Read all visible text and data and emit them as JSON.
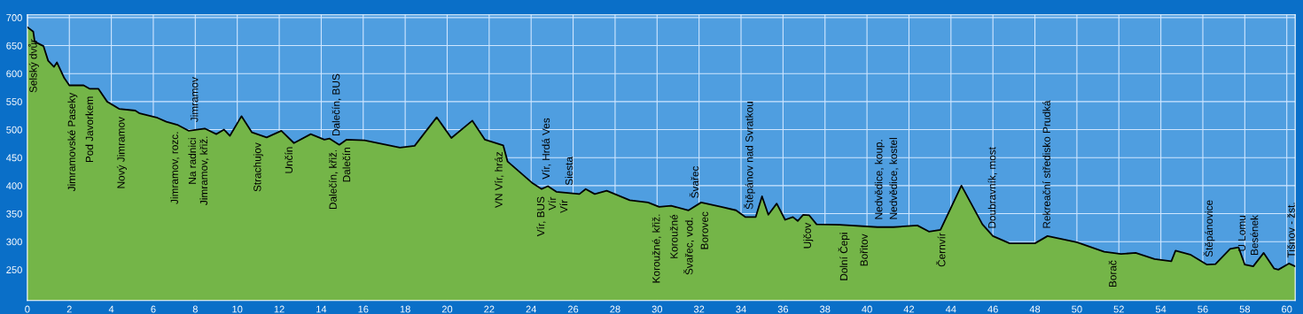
{
  "chart_data": {
    "type": "area",
    "x": [
      0,
      0.28,
      0.35,
      0.77,
      0.99,
      1.27,
      1.41,
      1.76,
      2.0,
      2.68,
      2.96,
      3.38,
      3.8,
      4.37,
      5.14,
      5.35,
      6.2,
      6.62,
      7.18,
      7.68,
      8.45,
      9.0,
      9.37,
      9.65,
      10.2,
      10.7,
      11.4,
      12.1,
      12.7,
      13.5,
      14.15,
      14.4,
      14.86,
      15.2,
      16.06,
      17.75,
      18.45,
      19.5,
      19.86,
      20.2,
      21.2,
      21.8,
      22.67,
      22.88,
      24.08,
      24.5,
      24.8,
      25.2,
      26.3,
      26.6,
      27.03,
      27.6,
      28.7,
      29.57,
      30.1,
      30.67,
      31.5,
      32.1,
      33.06,
      33.76,
      34.2,
      34.7,
      35.0,
      35.3,
      35.7,
      36.1,
      36.47,
      36.7,
      36.96,
      37.25,
      37.6,
      38.7,
      40.5,
      41.26,
      42.4,
      42.95,
      43.5,
      44.5,
      45.5,
      46.0,
      46.8,
      48.0,
      48.6,
      50.0,
      51.3,
      52.1,
      52.8,
      53.7,
      54.5,
      54.7,
      55.4,
      56.2,
      56.6,
      57.3,
      57.7,
      58.0,
      58.4,
      58.9,
      59.4,
      59.6,
      60.1,
      60.4
    ],
    "series": [
      {
        "color": "#74b548",
        "values": [
          683,
          675,
          657,
          649,
          623,
          612,
          620,
          592,
          579,
          579,
          573,
          573,
          550,
          537,
          534,
          529,
          521,
          514,
          508,
          498,
          502,
          492,
          500,
          489,
          524,
          495,
          486,
          498,
          476,
          492,
          482,
          484,
          473,
          482,
          481,
          468,
          471,
          522,
          503,
          485,
          516,
          482,
          472,
          443,
          404,
          394,
          399,
          389,
          385,
          394,
          385,
          391,
          374,
          370,
          362,
          364,
          356,
          370,
          362,
          356,
          344,
          344,
          381,
          348,
          368,
          339,
          344,
          337,
          348,
          347,
          331,
          330,
          326,
          326,
          329,
          318,
          321,
          400,
          331,
          310,
          297,
          297,
          310,
          299,
          282,
          278,
          280,
          269,
          265,
          284,
          277,
          259,
          260,
          287,
          290,
          259,
          256,
          280,
          252,
          250,
          261,
          256
        ]
      }
    ],
    "xlim": [
      0,
      60.4
    ],
    "ylim": [
      195,
      705
    ],
    "xticks": [
      0,
      2,
      4,
      6,
      8,
      10,
      12,
      14,
      16,
      18,
      20,
      22,
      24,
      26,
      28,
      30,
      32,
      34,
      36,
      38,
      40,
      42,
      44,
      46,
      48,
      50,
      52,
      54,
      56,
      58,
      60
    ],
    "yticks": [
      250,
      300,
      350,
      400,
      450,
      500,
      550,
      600,
      650,
      700
    ],
    "grid": true,
    "annotations": [
      {
        "text": "Selský dvůr",
        "x": 0.3,
        "y": 675
      },
      {
        "text": "Jimramovské Paseky",
        "x": 2.15,
        "y": 579
      },
      {
        "text": "Pod Javorkem",
        "x": 3.0,
        "y": 573
      },
      {
        "text": "Nový Jimramov",
        "x": 4.5,
        "y": 536
      },
      {
        "text": "Jimramov, rozc.",
        "x": 7.05,
        "y": 510
      },
      {
        "text": "Na radnici",
        "x": 7.9,
        "y": 499
      },
      {
        "text": "Jimramov",
        "x": 8.0,
        "y": 500
      },
      {
        "text": "Jimramov, křiž.",
        "x": 8.45,
        "y": 502
      },
      {
        "text": "Strachujov",
        "x": 11.0,
        "y": 490
      },
      {
        "text": "Unčín",
        "x": 12.5,
        "y": 483
      },
      {
        "text": "Dalečín, křiž.",
        "x": 14.6,
        "y": 478
      },
      {
        "text": "Dalečín, BUS",
        "x": 14.75,
        "y": 475
      },
      {
        "text": "Dalečín",
        "x": 15.25,
        "y": 482
      },
      {
        "text": "VN Vír, hráz",
        "x": 22.5,
        "y": 474
      },
      {
        "text": "Vír, BUS",
        "x": 24.5,
        "y": 394
      },
      {
        "text": "Vír, Hrdá Ves",
        "x": 24.75,
        "y": 398
      },
      {
        "text": "Vír",
        "x": 25.05,
        "y": 393
      },
      {
        "text": "Vír",
        "x": 25.6,
        "y": 388
      },
      {
        "text": "Siesta",
        "x": 25.85,
        "y": 387
      },
      {
        "text": "Koroužné, křiž.",
        "x": 30.0,
        "y": 363
      },
      {
        "text": "Koroužné",
        "x": 30.85,
        "y": 362
      },
      {
        "text": "Švařec, vod.",
        "x": 31.55,
        "y": 357
      },
      {
        "text": "Švařec",
        "x": 31.85,
        "y": 364
      },
      {
        "text": "Borovec",
        "x": 32.3,
        "y": 367
      },
      {
        "text": "Štěpánov nad Svratkou",
        "x": 34.4,
        "y": 344
      },
      {
        "text": "Ujčov",
        "x": 37.2,
        "y": 347
      },
      {
        "text": "Dolní Čepi",
        "x": 38.9,
        "y": 330
      },
      {
        "text": "Bořitov",
        "x": 39.9,
        "y": 327
      },
      {
        "text": "Nedvědice, koup.",
        "x": 40.6,
        "y": 326
      },
      {
        "text": "Nedvědice, kostel",
        "x": 41.3,
        "y": 326
      },
      {
        "text": "Černvír",
        "x": 43.6,
        "y": 329
      },
      {
        "text": "Doubravník, most",
        "x": 46.0,
        "y": 310
      },
      {
        "text": "Rekreační středisko Prudká",
        "x": 48.6,
        "y": 310
      },
      {
        "text": "Borač",
        "x": 51.75,
        "y": 280
      },
      {
        "text": "Štěpánovice",
        "x": 56.3,
        "y": 259
      },
      {
        "text": "U Lomu",
        "x": 57.9,
        "y": 269
      },
      {
        "text": "Besének",
        "x": 58.5,
        "y": 262
      },
      {
        "text": "Tišnov - žst.",
        "x": 60.25,
        "y": 258
      }
    ]
  }
}
